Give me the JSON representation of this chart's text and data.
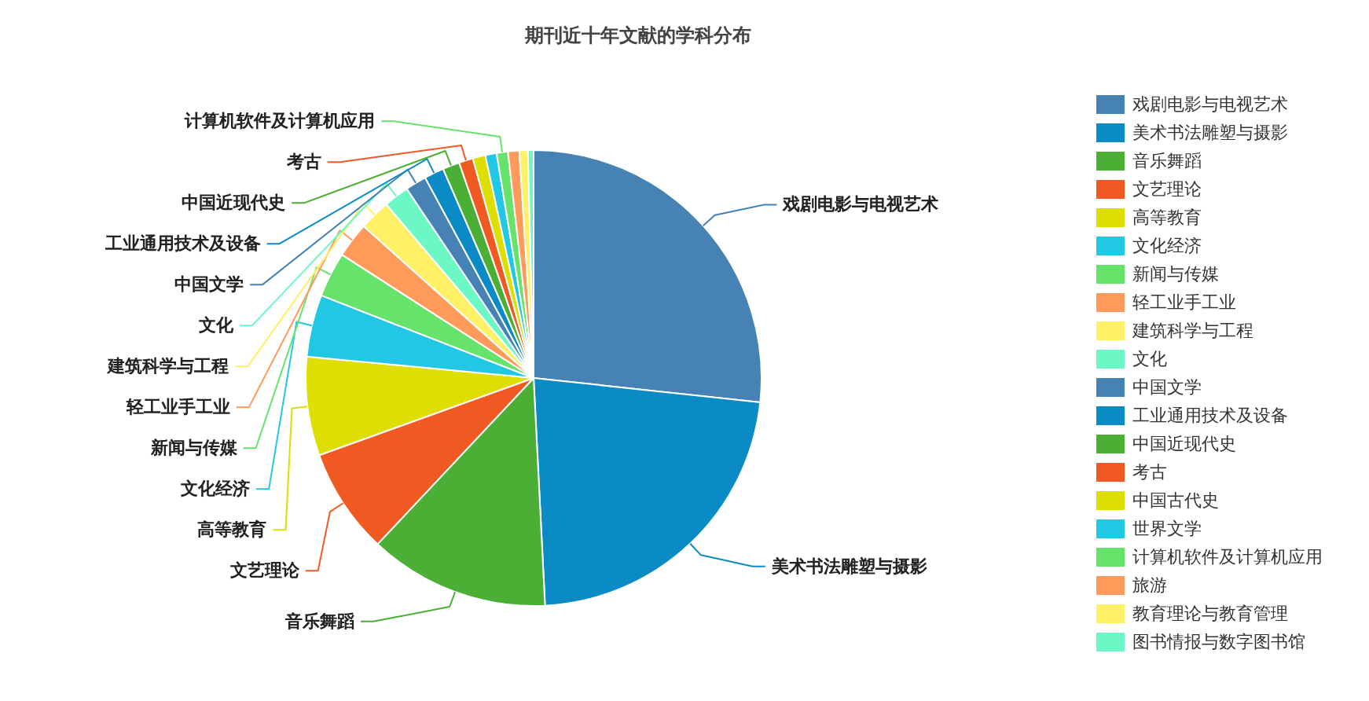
{
  "chart_data": {
    "type": "pie",
    "title": "期刊近十年文献的学科分布",
    "legend": "right",
    "categories": [
      "戏剧电影与电视艺术",
      "美术书法雕塑与摄影",
      "音乐舞蹈",
      "文艺理论",
      "高等教育",
      "文化经济",
      "新闻与传媒",
      "轻工业手工业",
      "建筑科学与工程",
      "文化",
      "中国文学",
      "工业通用技术及设备",
      "中国近现代史",
      "考古",
      "中国古代史",
      "世界文学",
      "计算机软件及计算机应用",
      "旅游",
      "教育理论与教育管理",
      "图书情报与数字图书馆"
    ],
    "values": [
      26.7,
      22.5,
      12.8,
      7.5,
      7.0,
      4.4,
      3.2,
      2.5,
      2.2,
      1.8,
      1.5,
      1.4,
      1.2,
      1.0,
      0.9,
      0.8,
      0.8,
      0.8,
      0.6,
      0.4
    ],
    "colors": [
      "#4682b4",
      "#0a8bc6",
      "#4caf35",
      "#f05a22",
      "#dede00",
      "#22c7e3",
      "#66e36b",
      "#ff9a5a",
      "#fff066",
      "#6cf8c4",
      "#4682b4",
      "#0a8bc6",
      "#4caf35",
      "#f05a22",
      "#dede00",
      "#22c7e3",
      "#66e36b",
      "#ff9a5a",
      "#fff066",
      "#6cf8c4"
    ],
    "value_labels": [
      "戏剧电影与电视艺术",
      "美术书法雕塑与摄影",
      "音乐舞蹈",
      "文艺理论",
      "高等教育",
      "文化经济",
      "新闻与传媒",
      "轻工业手工业",
      "建筑科学与工程",
      "文化",
      "中国文学",
      "工业通用技术及设备",
      "中国近现代史",
      "考古",
      null,
      null,
      "计算机软件及计算机应用",
      null,
      null,
      null
    ]
  }
}
